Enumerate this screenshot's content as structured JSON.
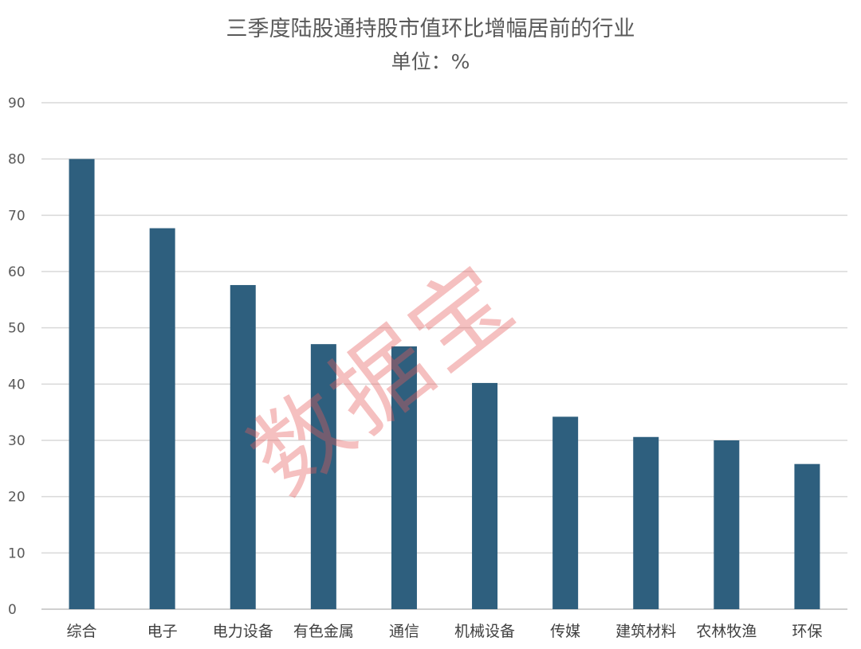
{
  "chart_data": {
    "type": "bar",
    "title": "三季度陆股通持股市值环比增幅居前的行业",
    "subtitle": "单位：%",
    "categories": [
      "综合",
      "电子",
      "电力设备",
      "有色金属",
      "通信",
      "机械设备",
      "传媒",
      "建筑材料",
      "农林牧渔",
      "环保"
    ],
    "values": [
      80.0,
      67.7,
      57.6,
      47.1,
      46.7,
      40.2,
      34.2,
      30.6,
      30.0,
      25.8
    ],
    "ylim": [
      0,
      90
    ],
    "yticks": [
      0,
      10,
      20,
      30,
      40,
      50,
      60,
      70,
      80,
      90
    ],
    "grid": true,
    "xlabel": "",
    "ylabel": "",
    "bar_color": "#2e5f7e",
    "watermark": "数据宝"
  }
}
